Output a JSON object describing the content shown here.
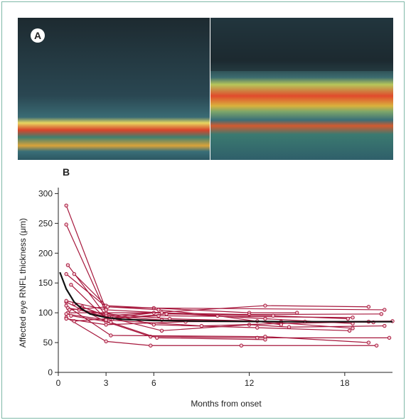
{
  "panel_a": {
    "label": "A"
  },
  "chart_data": {
    "type": "line",
    "label": "B",
    "ylabel": "Affected eye RNFL thickness (μm)",
    "xlabel": "Months from onset",
    "xlim": [
      0,
      21
    ],
    "ylim": [
      0,
      310
    ],
    "xticks": [
      0,
      3,
      6,
      12,
      18
    ],
    "yticks": [
      0,
      50,
      100,
      150,
      200,
      250,
      300
    ],
    "marker_color": "#a6173c",
    "series": [
      {
        "x": [
          0.5,
          3
        ],
        "values": [
          280,
          105
        ]
      },
      {
        "x": [
          0.5,
          3,
          6.5
        ],
        "values": [
          248,
          100,
          100
        ]
      },
      {
        "x": [
          0.6,
          3,
          13,
          19.5
        ],
        "values": [
          180,
          95,
          112,
          110
        ]
      },
      {
        "x": [
          0.5,
          3,
          6,
          20.5
        ],
        "values": [
          165,
          110,
          108,
          105
        ]
      },
      {
        "x": [
          0.8,
          3,
          6.3,
          18.5
        ],
        "values": [
          147,
          90,
          95,
          92
        ]
      },
      {
        "x": [
          1,
          3,
          12,
          15
        ],
        "values": [
          165,
          112,
          100,
          100
        ]
      },
      {
        "x": [
          0.5,
          3,
          5.8,
          12.5,
          20.8
        ],
        "values": [
          118,
          85,
          60,
          58,
          58
        ]
      },
      {
        "x": [
          0.5,
          3,
          5.8,
          11.5,
          20
        ],
        "values": [
          92,
          52,
          45,
          45,
          45
        ]
      },
      {
        "x": [
          0.6,
          3,
          6,
          12.5,
          18.3
        ],
        "values": [
          100,
          100,
          80,
          75,
          70
        ]
      },
      {
        "x": [
          0.5,
          3.3,
          13,
          19.5
        ],
        "values": [
          112,
          62,
          60,
          50
        ]
      },
      {
        "x": [
          1,
          3,
          6,
          12,
          20.3
        ],
        "values": [
          86,
          90,
          100,
          97,
          98
        ]
      },
      {
        "x": [
          0.5,
          3,
          6.5,
          13,
          18.5
        ],
        "values": [
          120,
          105,
          100,
          90,
          82
        ]
      },
      {
        "x": [
          0.6,
          3,
          7,
          14,
          21
        ],
        "values": [
          108,
          98,
          90,
          85,
          86
        ]
      },
      {
        "x": [
          1.3,
          3.2,
          6.5,
          12,
          14.5,
          20.5
        ],
        "values": [
          105,
          92,
          70,
          80,
          76,
          78
        ]
      },
      {
        "x": [
          0.5,
          3,
          9,
          14,
          19.5
        ],
        "values": [
          98,
          88,
          78,
          82,
          85
        ]
      },
      {
        "x": [
          0.8,
          3.3,
          6.2,
          13
        ],
        "values": [
          95,
          84,
          58,
          55
        ]
      },
      {
        "x": [
          0.5,
          3,
          8,
          15.5,
          19.8
        ],
        "values": [
          90,
          80,
          85,
          85,
          84
        ]
      },
      {
        "x": [
          1.5,
          3,
          6.5,
          12.5,
          18.5
        ],
        "values": [
          110,
          95,
          88,
          86,
          74
        ]
      },
      {
        "x": [
          0.7,
          3.1,
          6.3,
          10,
          14
        ],
        "values": [
          105,
          110,
          105,
          95,
          80
        ]
      },
      {
        "x": [
          1,
          3.4,
          6.8,
          13.5,
          18.2
        ],
        "values": [
          115,
          90,
          98,
          95,
          90
        ]
      }
    ],
    "fit": {
      "color": "#111111",
      "x": [
        0.1,
        0.5,
        1,
        1.5,
        2,
        3,
        4,
        6,
        9,
        12,
        15,
        18,
        21
      ],
      "values": [
        168,
        140,
        118,
        106,
        98,
        92,
        89,
        87,
        86,
        85.5,
        85,
        85,
        85
      ]
    }
  }
}
